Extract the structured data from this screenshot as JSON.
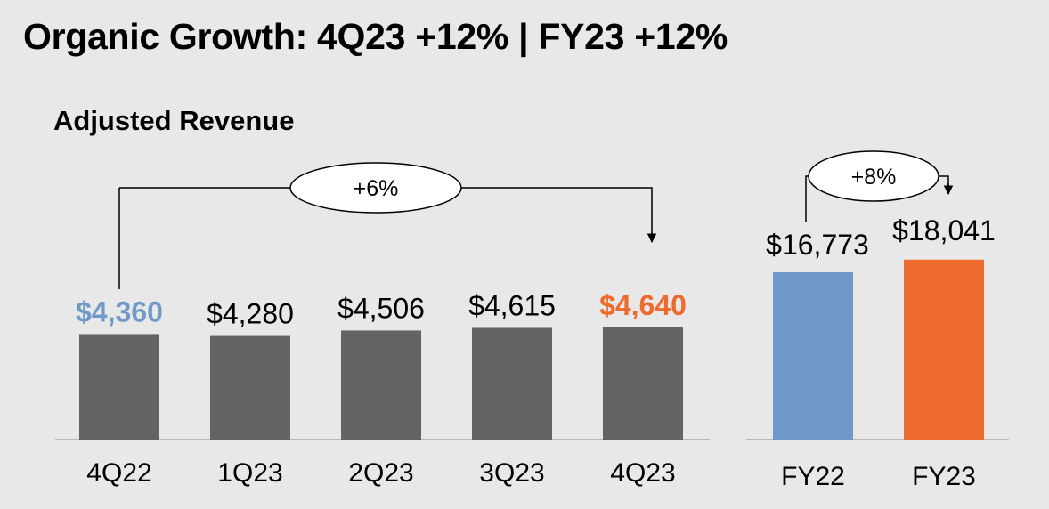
{
  "title": "Organic Growth: 4Q23 +12% | FY23 +12%",
  "colors": {
    "background": "#e8e8e8",
    "quarter_bar": "#636363",
    "fy22_bar": "#7099c7",
    "fy23_bar": "#ee6b2e",
    "highlight_prior": "#7099c7",
    "highlight_current": "#ee6b2e",
    "axis": "#9a9a9a"
  },
  "chart_data": [
    {
      "type": "bar",
      "title": "Adjusted Revenue",
      "categories": [
        "4Q22",
        "1Q23",
        "2Q23",
        "3Q23",
        "4Q23"
      ],
      "values": [
        4360,
        4280,
        4506,
        4615,
        4640
      ],
      "value_labels": [
        "$4,360",
        "$4,280",
        "$4,506",
        "$4,615",
        "$4,640"
      ],
      "label_styles": [
        "highlight_prior",
        "normal",
        "normal",
        "normal",
        "highlight_current"
      ],
      "annotation": {
        "text": "+6%",
        "from": "4Q22",
        "to": "4Q23"
      }
    },
    {
      "type": "bar",
      "categories": [
        "FY22",
        "FY23"
      ],
      "values": [
        16773,
        18041
      ],
      "value_labels": [
        "$16,773",
        "$18,041"
      ],
      "bar_colors": [
        "#7099c7",
        "#ee6b2e"
      ],
      "annotation": {
        "text": "+8%",
        "from": "FY22",
        "to": "FY23"
      }
    }
  ]
}
